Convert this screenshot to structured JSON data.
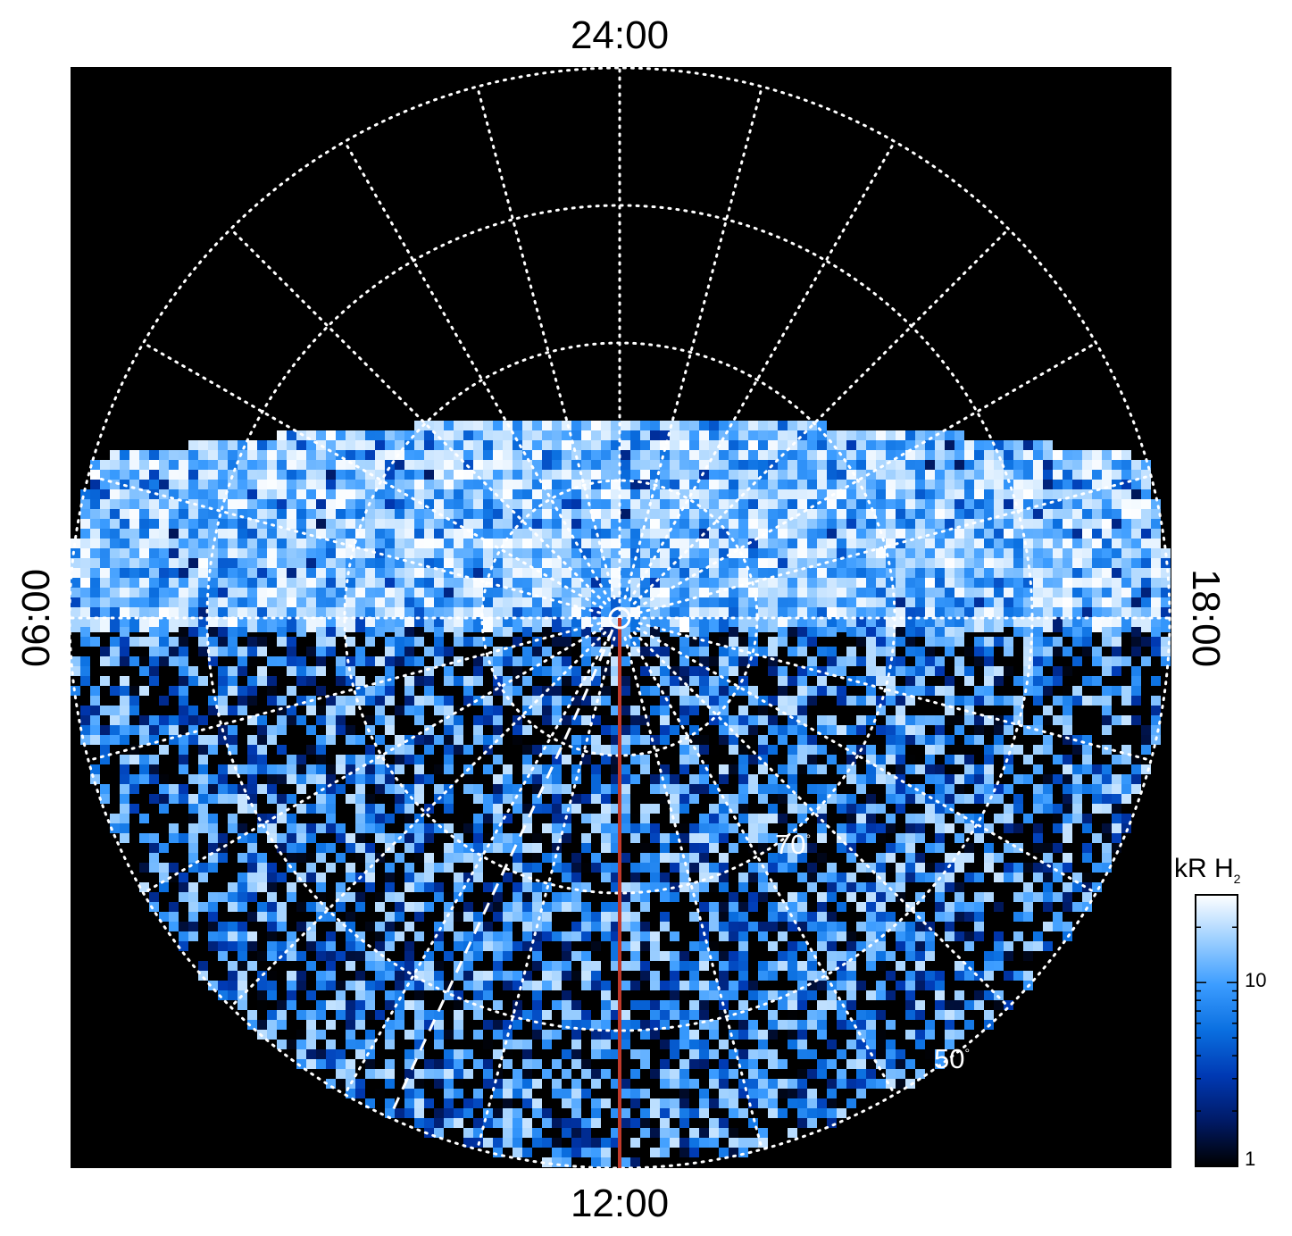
{
  "chart_data": {
    "type": "heatmap",
    "projection": "polar, north-pole centred; local time clockwise angle, co-latitude radius",
    "local_time_labels": {
      "top": "24:00",
      "bottom": "12:00",
      "left": "06:00",
      "right": "18:00"
    },
    "latitude_labels": [
      "70",
      "50"
    ],
    "latitude_circles_deg": [
      80,
      70,
      60,
      50
    ],
    "local_time_meridian_step_hours": 1,
    "noon_meridian_color": "#c0392b",
    "grid": "dotted white",
    "colorbar": {
      "title_main": "kR H",
      "title_sub": "2",
      "scale": "log",
      "range": [
        1,
        30
      ],
      "ticks": [
        "10",
        "1"
      ],
      "colormap": [
        "#000000",
        "#001a66",
        "#0039b3",
        "#0a6fe0",
        "#3b9cff",
        "#9ccfff",
        "#ffffff"
      ]
    },
    "features": {
      "main_oval_brightness_kR": [
        10,
        30
      ],
      "background_brightness_kR": [
        1,
        10
      ]
    }
  }
}
